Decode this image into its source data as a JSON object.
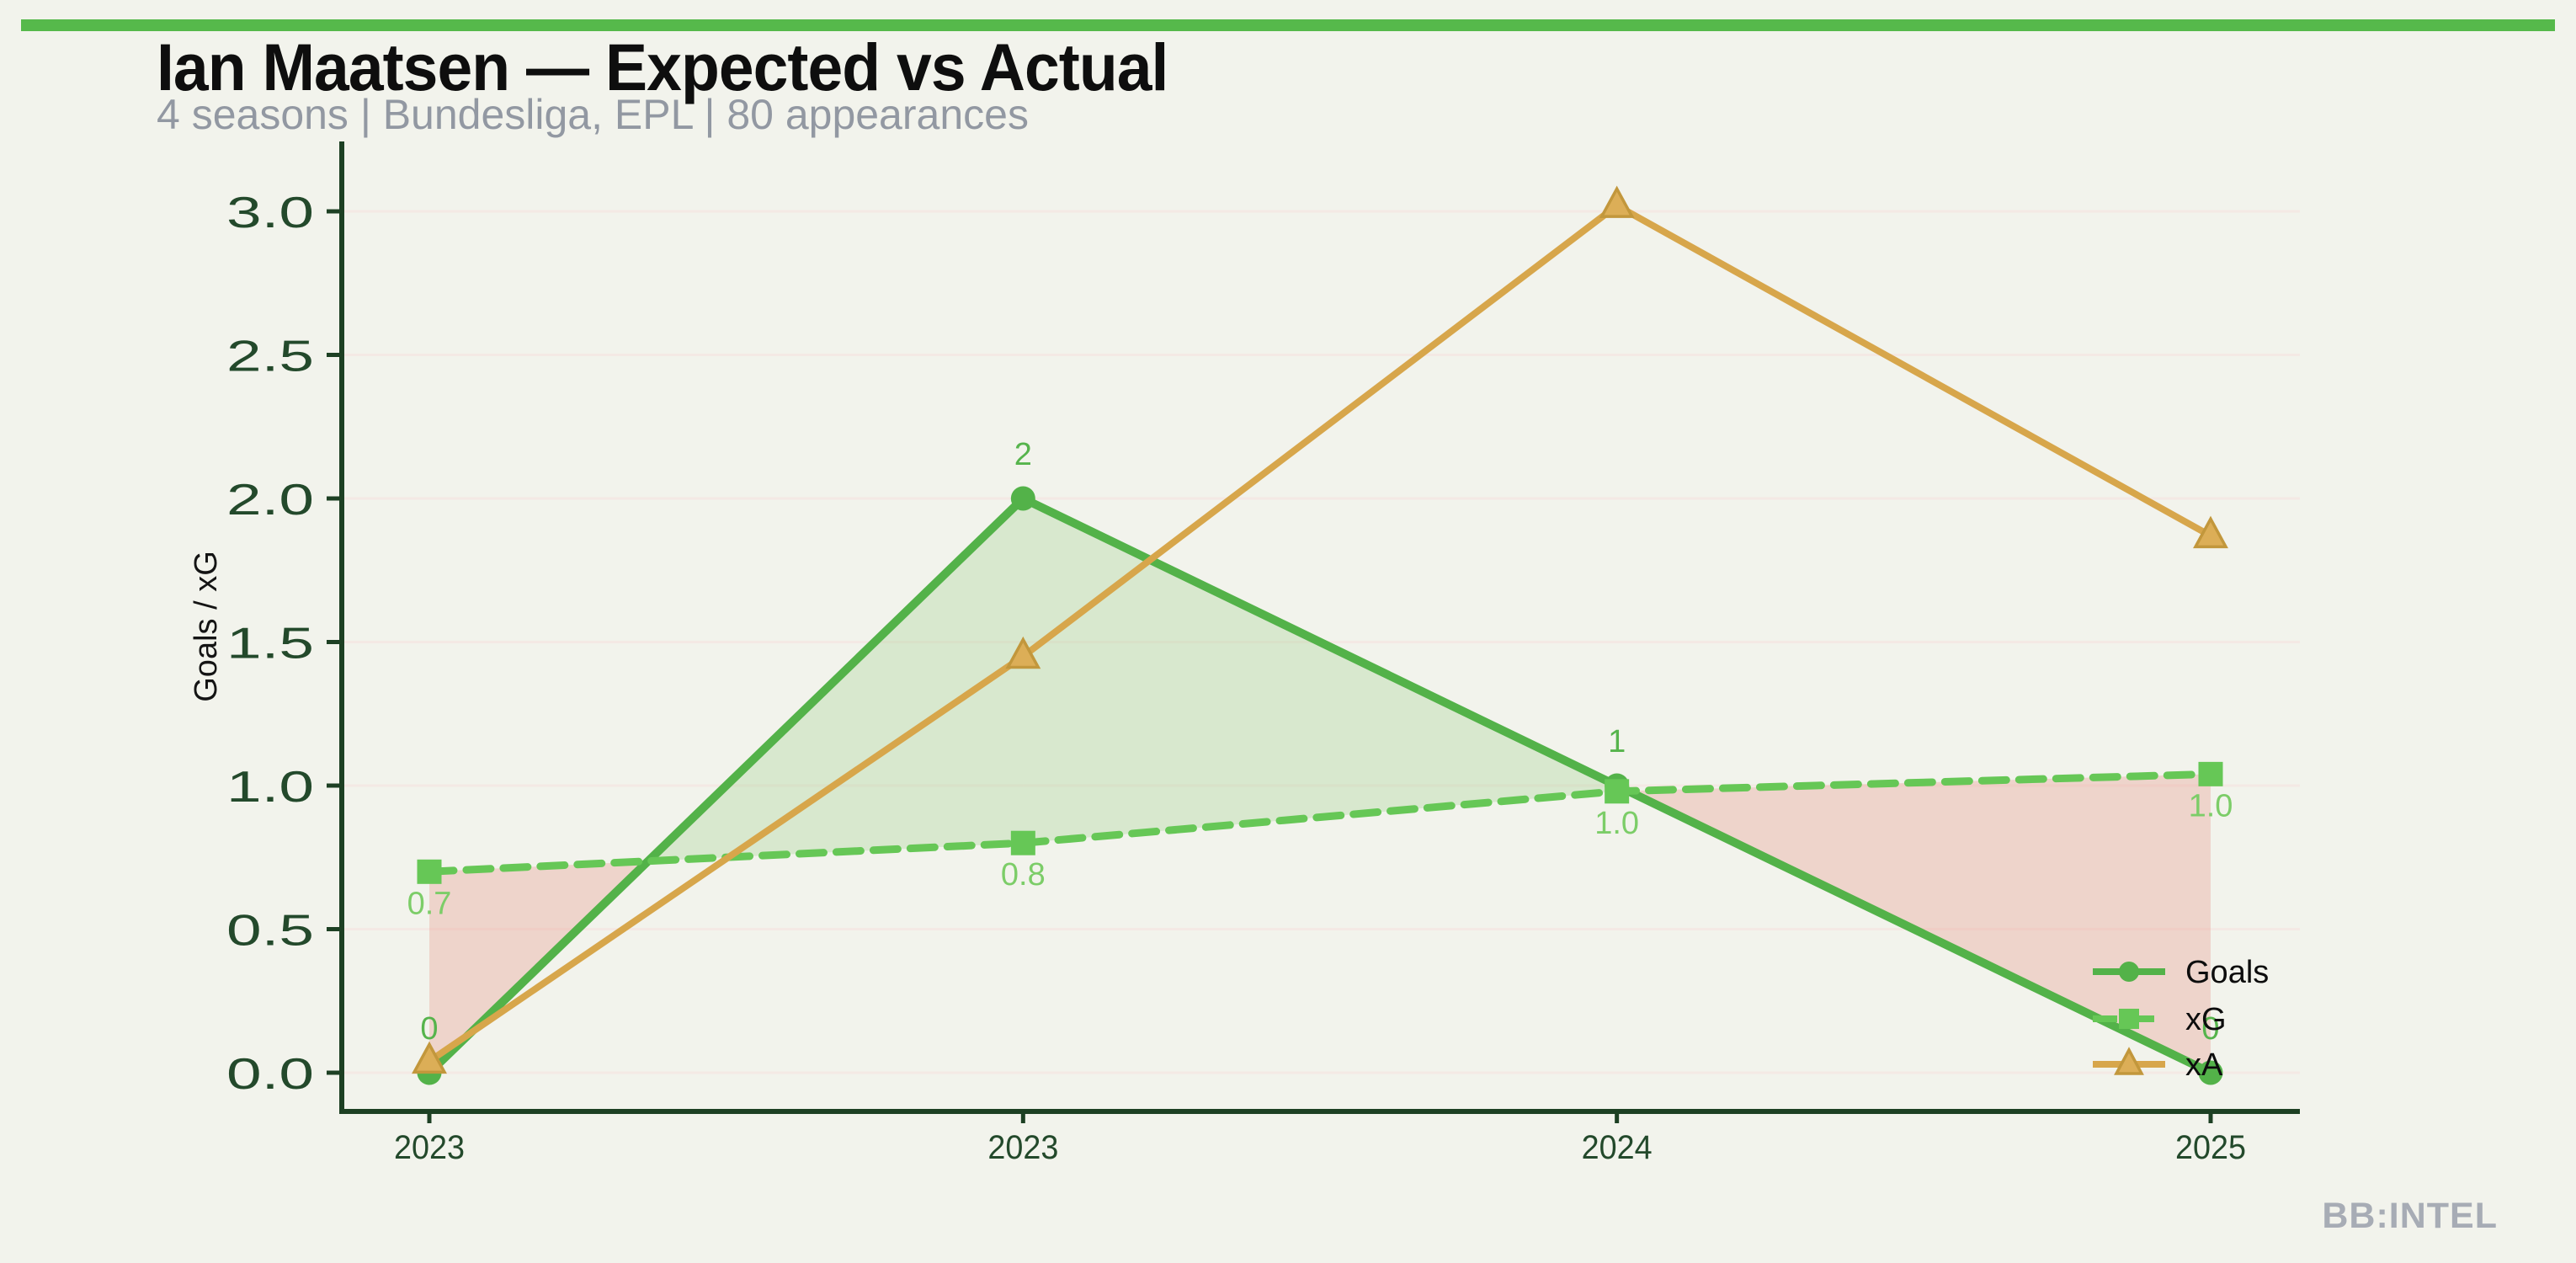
{
  "header": {
    "title": "Ian Maatsen — Expected vs Actual",
    "subtitle": "4 seasons | Bundesliga, EPL | 80 appearances"
  },
  "watermark": "BB:INTEL",
  "colors": {
    "background": "#f2f3ec",
    "accent_bar": "#56b94b",
    "title": "#0e0e0e",
    "subtitle": "#9298a2",
    "axis": "#1d4023",
    "tick_label": "#23492b",
    "grid": "#f4e9e4",
    "ylabel": "#141414",
    "legend_text": "#0d0d0d",
    "watermark": "#a7acb5",
    "positive_fill": "rgba(123,197,98,0.22)",
    "negative_fill": "rgba(229,132,117,0.28)"
  },
  "chart_data": {
    "type": "line",
    "title": "Ian Maatsen — Expected vs Actual",
    "subtitle": "4 seasons | Bundesliga, EPL | 80 appearances",
    "xlabel": "",
    "ylabel": "Goals / xG",
    "categories": [
      "2023",
      "2023",
      "2024",
      "2025"
    ],
    "yticks": [
      0.0,
      0.5,
      1.0,
      1.5,
      2.0,
      2.5,
      3.0
    ],
    "ytick_labels": [
      "0.0",
      "0.5",
      "1.0",
      "1.5",
      "2.0",
      "2.5",
      "3.0"
    ],
    "ylim": [
      -0.14,
      3.25
    ],
    "grid": "horizontal-faint",
    "legend_position": "lower right",
    "series": [
      {
        "name": "Goals",
        "style": "solid",
        "marker": "circle",
        "color": "#53b249",
        "values": [
          0,
          2,
          1,
          0
        ],
        "point_labels": [
          "0",
          "2",
          "1",
          "0"
        ],
        "point_label_side": "above",
        "point_label_color": "#56b44c"
      },
      {
        "name": "xG",
        "style": "dashed",
        "marker": "square",
        "color": "#66c756",
        "values": [
          0.7,
          0.8,
          0.98,
          1.04
        ],
        "point_labels": [
          "0.7",
          "0.8",
          "1.0",
          "1.0"
        ],
        "point_label_side": "below",
        "point_label_color": "#7ccd68"
      },
      {
        "name": "xA",
        "style": "solid",
        "marker": "triangle",
        "color": "#d7a64b",
        "marker_fill": "#dcae57",
        "marker_edge": "#c2973c",
        "values": [
          0.04,
          1.45,
          3.02,
          1.87
        ],
        "point_labels": [
          "",
          "",
          "",
          ""
        ],
        "point_label_side": "none",
        "point_label_color": ""
      }
    ],
    "fill_between": {
      "upper": "Goals",
      "lower": "xG",
      "meaning": "green where Goals > xG (overperformance), red where Goals < xG (underperformance)"
    },
    "legend": {
      "entries": [
        "Goals",
        "xG",
        "xA"
      ]
    }
  }
}
